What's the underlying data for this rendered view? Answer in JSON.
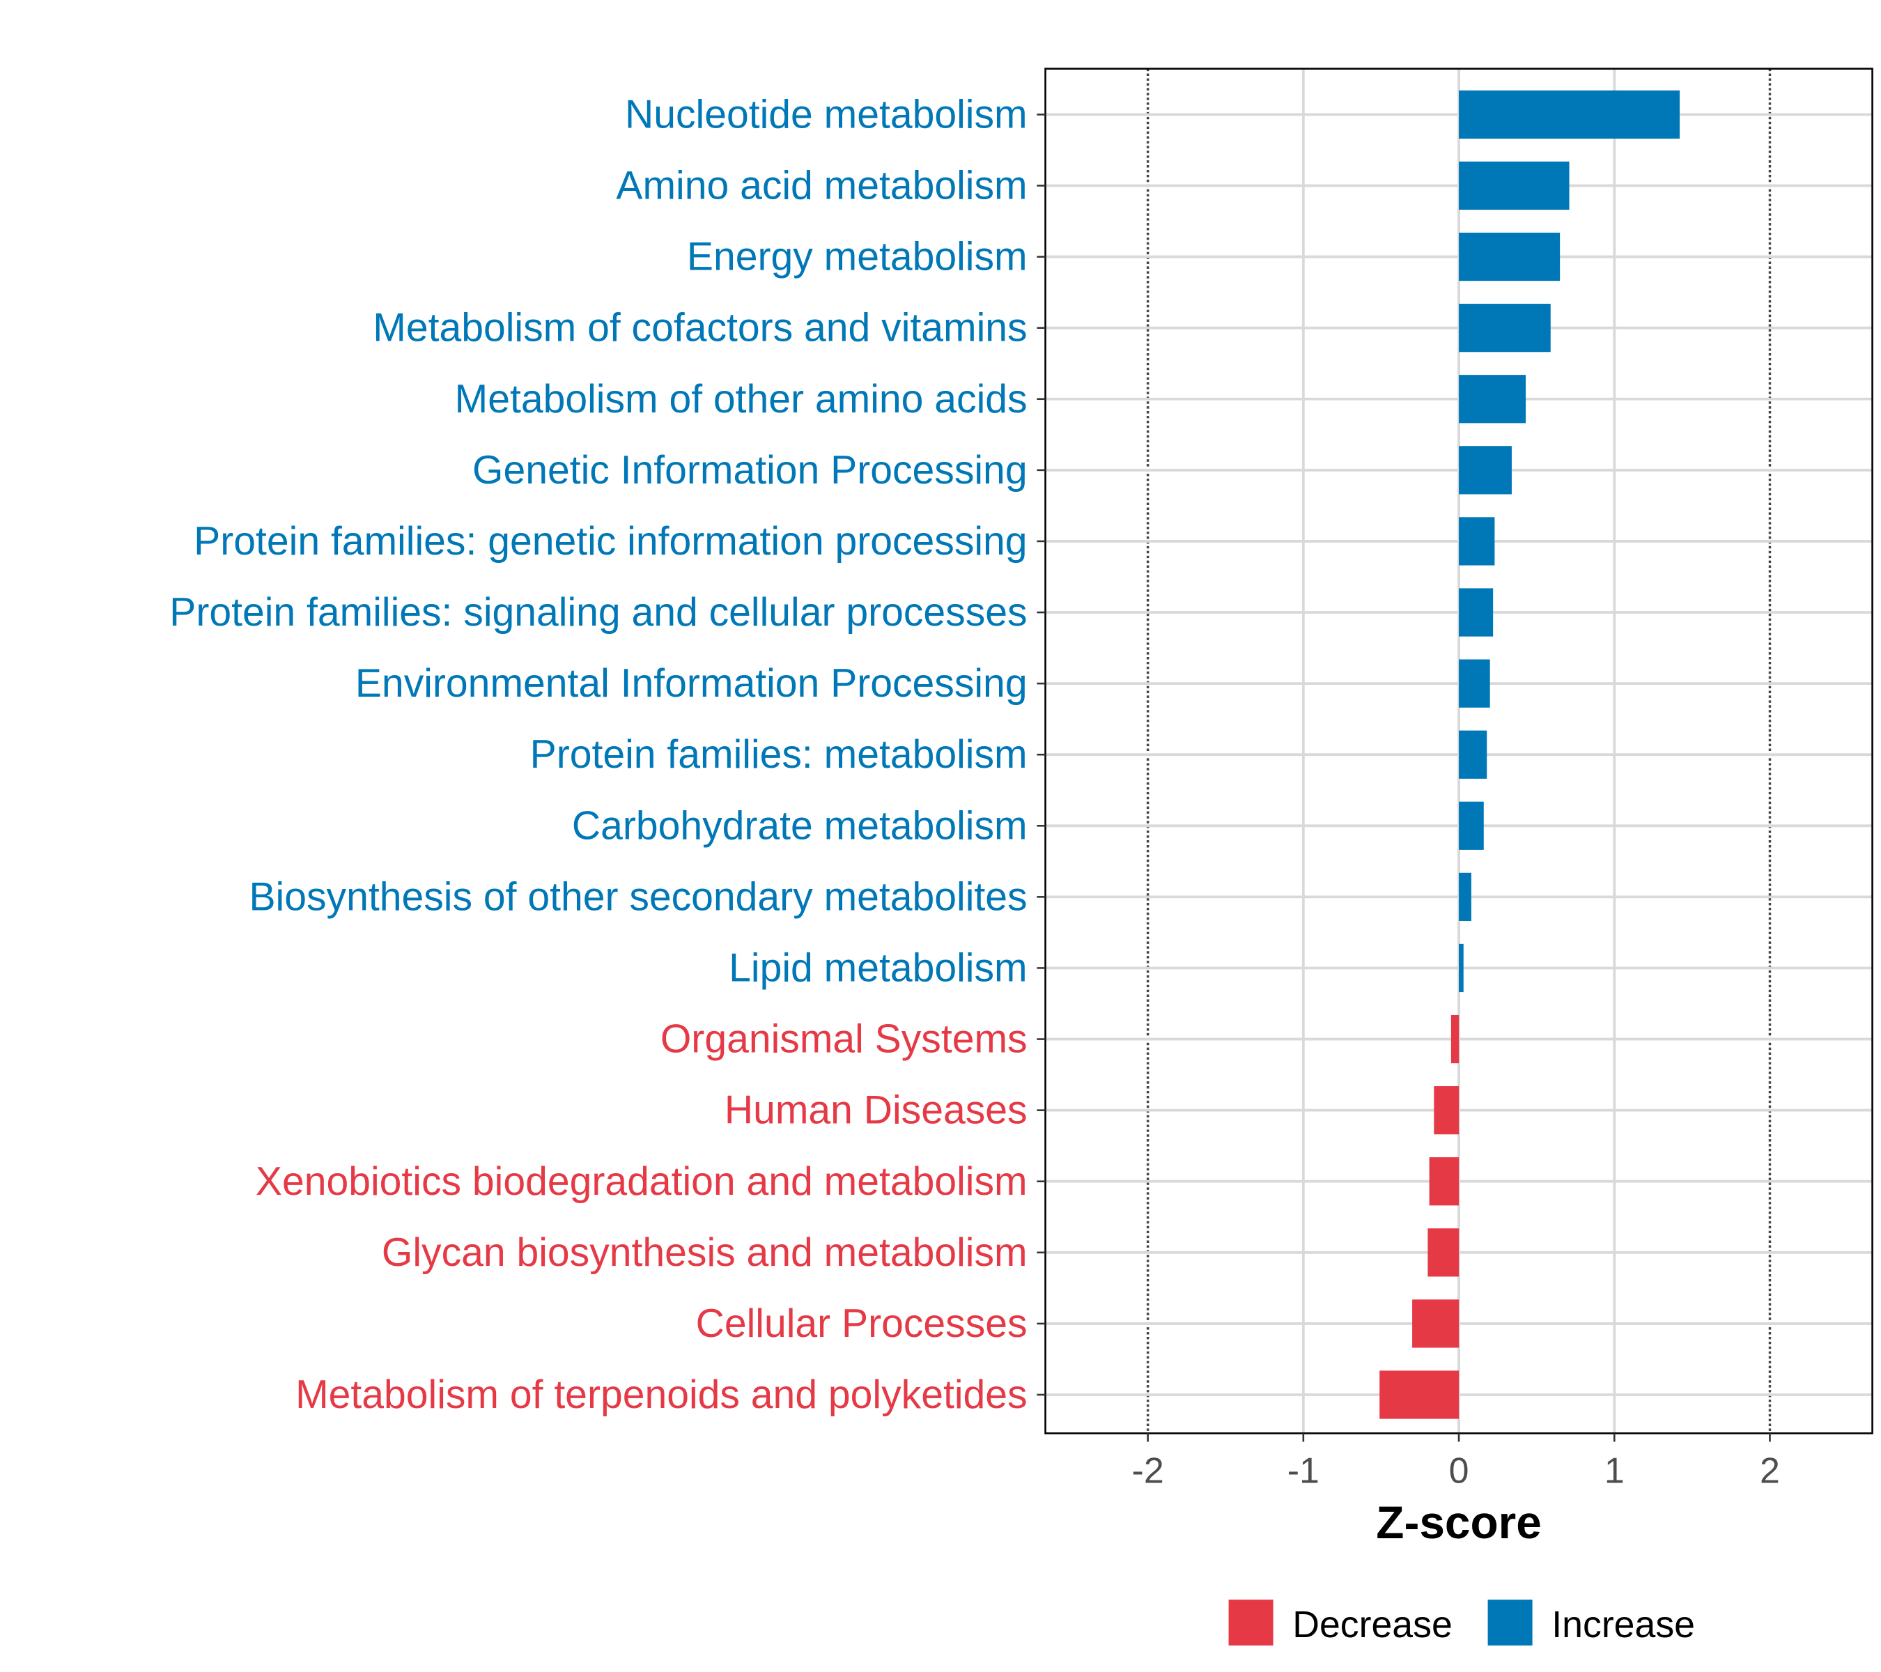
{
  "chart_data": {
    "type": "bar",
    "orientation": "horizontal",
    "title": "",
    "xlabel": "Z-score",
    "ylabel": "",
    "xlim": [
      -2.65,
      2.65
    ],
    "xticks": [
      -2,
      -1,
      0,
      1,
      2
    ],
    "xtick_labels": [
      "-2",
      "-1",
      "0",
      "1",
      "2"
    ],
    "reference_lines": [
      -2,
      2
    ],
    "grid": true,
    "legend_position": "bottom",
    "categories": [
      "Nucleotide metabolism",
      "Amino acid metabolism",
      "Energy metabolism",
      "Metabolism of cofactors and vitamins",
      "Metabolism of other amino acids",
      "Genetic Information Processing",
      "Protein families: genetic information processing",
      "Protein families: signaling and cellular processes",
      "Environmental Information Processing",
      "Protein families: metabolism",
      "Carbohydrate metabolism",
      "Biosynthesis of other secondary metabolites",
      "Lipid metabolism",
      "Organismal Systems",
      "Human Diseases",
      "Xenobiotics biodegradation and metabolism",
      "Glycan biosynthesis and metabolism",
      "Cellular Processes",
      "Metabolism of terpenoids and polyketides"
    ],
    "values": [
      1.42,
      0.71,
      0.65,
      0.59,
      0.43,
      0.34,
      0.23,
      0.22,
      0.2,
      0.18,
      0.16,
      0.08,
      0.03,
      -0.05,
      -0.16,
      -0.19,
      -0.2,
      -0.3,
      -0.51
    ],
    "legend": [
      {
        "label": "Decrease",
        "color": "#E63946"
      },
      {
        "label": "Increase",
        "color": "#0077B6"
      }
    ]
  }
}
